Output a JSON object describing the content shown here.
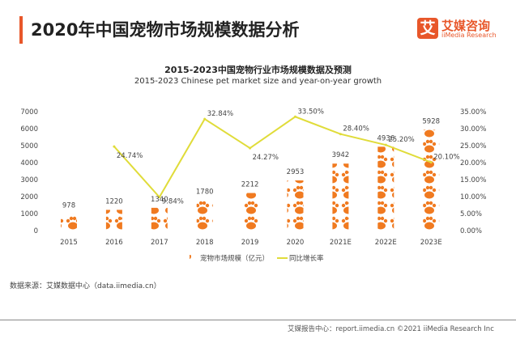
{
  "header": {
    "title": "2020年中国宠物市场规模数据分析",
    "logo_cn": "艾媒咨询",
    "logo_en": "iiMedia Research",
    "logo_mark": "艾"
  },
  "chart_data": {
    "type": "bar+line",
    "title": "2015-2023中国宠物行业市场规模数据及预测",
    "subtitle": "2015-2023 Chinese pet market size and year-on-year growth",
    "categories": [
      "2015",
      "2016",
      "2017",
      "2018",
      "2019",
      "2020",
      "2021E",
      "2022E",
      "2023E"
    ],
    "series": [
      {
        "name": "宠物市场规模（亿元）",
        "type": "bar",
        "axis": "left",
        "values": [
          978,
          1220,
          1340,
          1780,
          2212,
          2953,
          3942,
          4936,
          5928
        ],
        "labels": [
          "978",
          "1220",
          "1340",
          "1780",
          "2212",
          "2953",
          "3942",
          "4936",
          "5928"
        ],
        "color": "#f07a20"
      },
      {
        "name": "同比增长率",
        "type": "line",
        "axis": "right",
        "values": [
          null,
          24.74,
          9.84,
          32.84,
          24.27,
          33.5,
          28.4,
          25.2,
          20.1
        ],
        "labels": [
          "",
          "24.74%",
          "9.84%",
          "32.84%",
          "24.27%",
          "33.50%",
          "28.40%",
          "25.20%",
          "20.10%"
        ],
        "color": "#e0dc3a"
      }
    ],
    "y_left": {
      "min": 0,
      "max": 7000,
      "ticks": [
        "0",
        "1000",
        "2000",
        "3000",
        "4000",
        "5000",
        "6000",
        "7000"
      ]
    },
    "y_right": {
      "min": 0,
      "max": 35,
      "ticks": [
        "0.00%",
        "5.00%",
        "10.00%",
        "15.00%",
        "20.00%",
        "25.00%",
        "30.00%",
        "35.00%"
      ]
    },
    "grid": false,
    "legend": "bottom"
  },
  "footer": {
    "source": "数据来源：艾媒数据中心（data.iimedia.cn）",
    "copyright": "艾媒报告中心：report.iimedia.cn   ©2021  iiMedia Research  Inc"
  }
}
